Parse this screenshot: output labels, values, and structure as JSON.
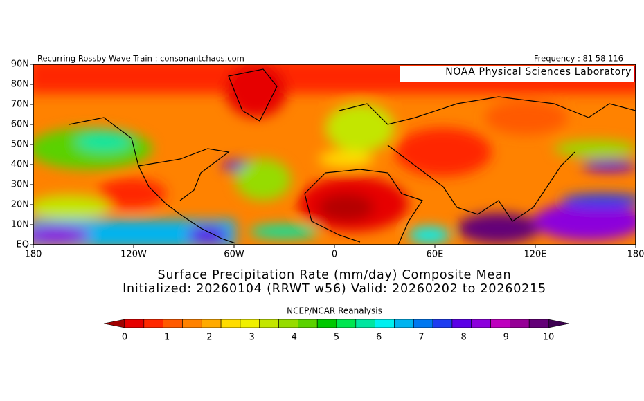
{
  "header": {
    "left": "Recurring Rossby Wave Train : consonantchaos.com",
    "right": "Frequency : 81 58 116"
  },
  "map": {
    "credit": "NOAA Physical Sciences Laboratory",
    "lat_labels": [
      "90N",
      "80N",
      "70N",
      "60N",
      "50N",
      "40N",
      "30N",
      "20N",
      "10N",
      "EQ"
    ],
    "lon_labels": [
      "180",
      "120W",
      "60W",
      "0",
      "60E",
      "120E",
      "180"
    ]
  },
  "title": [
    "Surface Precipitation Rate (mm/day) Composite Mean",
    "Initialized: 20260104 (RRWT w56) Valid: 20260202 to 20260215"
  ],
  "colorbar": {
    "source": "NCEP/NCAR Reanalysis",
    "ticks": [
      0,
      1,
      2,
      3,
      4,
      5,
      6,
      7,
      8,
      9,
      10
    ],
    "colors": [
      "#e60000",
      "#ff2800",
      "#ff5a00",
      "#ff8200",
      "#ffaa00",
      "#ffdc00",
      "#f0f000",
      "#c3e600",
      "#96dc00",
      "#5ad200",
      "#00c800",
      "#00e650",
      "#00e6a0",
      "#00f0f0",
      "#00b4f0",
      "#0078f0",
      "#1e3cf0",
      "#5a00e6",
      "#8c00dc",
      "#be00be",
      "#960096",
      "#640078"
    ],
    "under_color": "#a00000",
    "over_color": "#3c0050"
  }
}
